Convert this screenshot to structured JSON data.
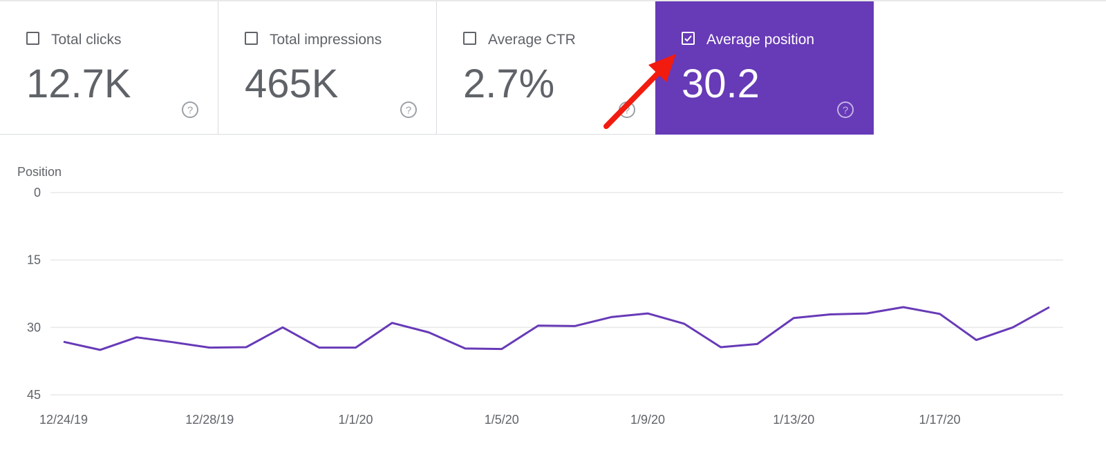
{
  "metrics": [
    {
      "label": "Total clicks",
      "value": "12.7K",
      "checked": false
    },
    {
      "label": "Total impressions",
      "value": "465K",
      "checked": false
    },
    {
      "label": "Average CTR",
      "value": "2.7%",
      "checked": false
    },
    {
      "label": "Average position",
      "value": "30.2",
      "checked": true
    }
  ],
  "colors": {
    "accent": "#673ab7",
    "line": "#673ab7",
    "arrow": "#f21b0f",
    "text": "#5f6368",
    "grid": "#e8e8e8"
  },
  "icons": {
    "checkbox": "checkbox-icon",
    "help": "help-circle-icon",
    "annotation": "red-arrow-icon"
  },
  "chart_data": {
    "type": "line",
    "ylabel": "Position",
    "y_inverted": true,
    "ylim": [
      0,
      45
    ],
    "yticks": [
      0,
      15,
      30,
      45
    ],
    "grid": true,
    "xtick_labels": [
      "12/24/19",
      "12/28/19",
      "1/1/20",
      "1/5/20",
      "1/9/20",
      "1/13/20",
      "1/17/20"
    ],
    "x": [
      "12/24/19",
      "12/25/19",
      "12/26/19",
      "12/27/19",
      "12/28/19",
      "12/29/19",
      "12/30/19",
      "12/31/19",
      "1/1/20",
      "1/2/20",
      "1/3/20",
      "1/4/20",
      "1/5/20",
      "1/6/20",
      "1/7/20",
      "1/8/20",
      "1/9/20",
      "1/10/20",
      "1/11/20",
      "1/12/20",
      "1/13/20",
      "1/14/20",
      "1/15/20",
      "1/16/20",
      "1/17/20",
      "1/18/20",
      "1/19/20",
      "1/20/20"
    ],
    "series": [
      {
        "values": [
          33.2,
          35.0,
          32.2,
          33.3,
          34.5,
          34.4,
          30.0,
          34.5,
          34.5,
          29.0,
          31.1,
          34.7,
          34.8,
          29.6,
          29.7,
          27.7,
          26.9,
          29.2,
          34.4,
          33.7,
          27.9,
          27.1,
          26.9,
          25.5,
          27.0,
          32.8,
          30.0,
          25.5
        ]
      }
    ]
  }
}
